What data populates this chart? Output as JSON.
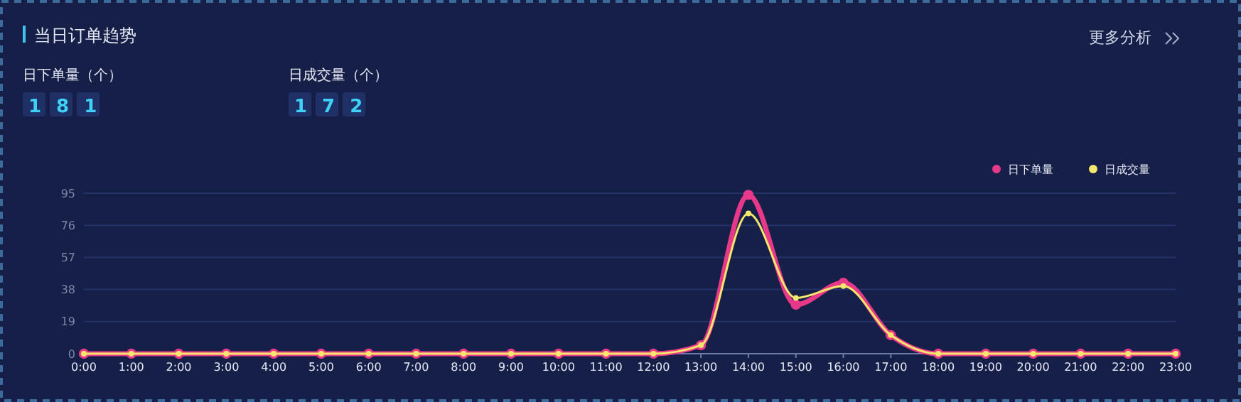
{
  "chart_data": {
    "type": "line",
    "title": "当日订单趋势",
    "categories": [
      "0:00",
      "1:00",
      "2:00",
      "3:00",
      "4:00",
      "5:00",
      "6:00",
      "7:00",
      "8:00",
      "9:00",
      "10:00",
      "11:00",
      "12:00",
      "13:00",
      "14:00",
      "15:00",
      "16:00",
      "17:00",
      "18:00",
      "19:00",
      "20:00",
      "21:00",
      "22:00",
      "23:00"
    ],
    "series": [
      {
        "name": "日下单量",
        "color": "#e8388a",
        "values": [
          0,
          0,
          0,
          0,
          0,
          0,
          0,
          0,
          0,
          0,
          0,
          0,
          0,
          5,
          94,
          29,
          42,
          11,
          0,
          0,
          0,
          0,
          0,
          0
        ]
      },
      {
        "name": "日成交量",
        "color": "#f5e76b",
        "values": [
          0,
          0,
          0,
          0,
          0,
          0,
          0,
          0,
          0,
          0,
          0,
          0,
          0,
          5,
          83,
          33,
          40,
          11,
          0,
          0,
          0,
          0,
          0,
          0
        ]
      }
    ],
    "ylim": [
      0,
      95
    ],
    "yticks": [
      0,
      19,
      38,
      57,
      76,
      95
    ],
    "grid": "y",
    "legend": "top right",
    "marker": "circle",
    "line_style": "solid",
    "annotations": [
      "日下单量（个）",
      "181",
      "日成交量（个）",
      "172",
      "更多分析"
    ]
  }
}
